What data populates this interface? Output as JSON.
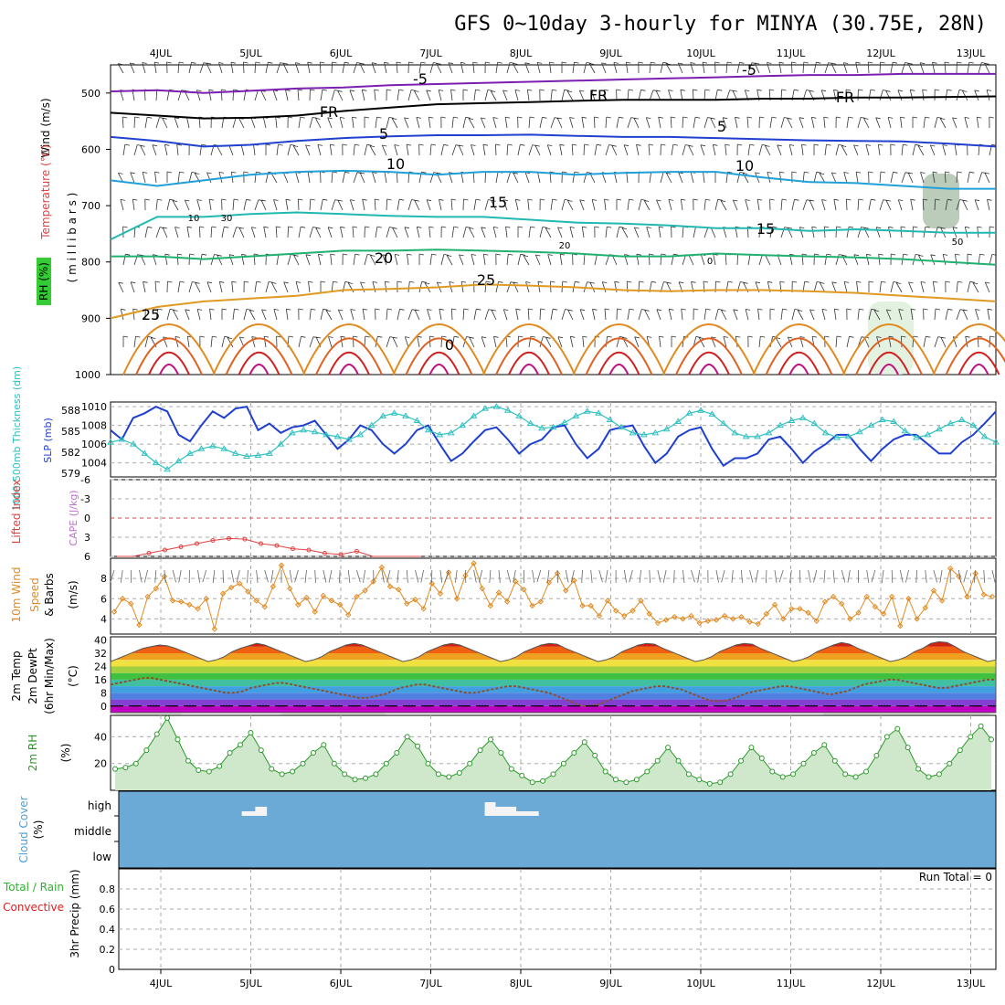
{
  "title": "GFS 0~10day 3-hourly for MINYA (30.75E, 28N)",
  "run_total": "Run Total = 0",
  "colors": {
    "wind_label": "#000000",
    "temp_label": "#e04040",
    "rh_badge": "#22bb22",
    "slp": "#1f3fd0",
    "thickness": "#30c0c0",
    "lifted": "#e04040",
    "cape": "#c070d0",
    "wind10": "#e08a20",
    "rh2m": "#2a9a2a",
    "cloud_bg": "#6baad6",
    "cloud_block": "#f4f4f4",
    "precip_total": "#30b030",
    "precip_conv": "#e02020"
  },
  "chart_data": [
    {
      "type": "line",
      "panel": "upper-air",
      "labels": {
        "wind": "Wind (m/s)",
        "temperature": "Temperature (°C)",
        "rh": "RH (%)",
        "pressure": "( m i l l i b a r s )"
      },
      "x": [
        "4JUL",
        "5JUL",
        "6JUL",
        "7JUL",
        "8JUL",
        "9JUL",
        "10JUL",
        "11JUL",
        "12JUL",
        "13JUL"
      ],
      "yticks": [
        500,
        600,
        700,
        800,
        900,
        1000
      ],
      "ylim": [
        1000,
        450
      ],
      "isotherm_labels": [
        "-5",
        "-5",
        "FR",
        "FR",
        "FR",
        "5",
        "5",
        "10",
        "10",
        "15",
        "15",
        "20",
        "25",
        "25",
        "0",
        "50",
        "10",
        "30",
        "20",
        "0"
      ],
      "series": [
        {
          "value": -5,
          "color": "#7a1fb0",
          "p": [
            497,
            495,
            500,
            496,
            492,
            490,
            486,
            484,
            482,
            480,
            478,
            476,
            474,
            472,
            470,
            468,
            468,
            466,
            466,
            466
          ]
        },
        {
          "value": 0,
          "color": "#000000",
          "p": [
            535,
            540,
            545,
            544,
            540,
            532,
            526,
            520,
            518,
            516,
            514,
            512,
            512,
            512,
            510,
            510,
            508,
            508,
            507,
            506
          ]
        },
        {
          "value": 5,
          "color": "#2040d0",
          "p": [
            578,
            585,
            595,
            592,
            585,
            580,
            577,
            575,
            575,
            574,
            576,
            578,
            578,
            580,
            582,
            584,
            585,
            586,
            590,
            595
          ]
        },
        {
          "value": 10,
          "color": "#20a0d8",
          "p": [
            655,
            665,
            655,
            645,
            640,
            638,
            640,
            645,
            640,
            640,
            645,
            642,
            640,
            640,
            650,
            658,
            660,
            665,
            670,
            670
          ]
        },
        {
          "value": 15,
          "color": "#20b8b0",
          "p": [
            760,
            720,
            720,
            715,
            712,
            715,
            718,
            720,
            720,
            725,
            730,
            732,
            735,
            740,
            740,
            745,
            742,
            745,
            748,
            748
          ]
        },
        {
          "value": 20,
          "color": "#20b070",
          "p": [
            790,
            790,
            795,
            790,
            785,
            780,
            780,
            778,
            780,
            782,
            785,
            790,
            790,
            785,
            788,
            790,
            792,
            795,
            800,
            805
          ]
        },
        {
          "value": 25,
          "color": "#e09a20",
          "p": [
            900,
            880,
            870,
            865,
            860,
            850,
            848,
            845,
            840,
            842,
            845,
            850,
            852,
            850,
            850,
            852,
            855,
            860,
            865,
            870
          ]
        }
      ]
    },
    {
      "type": "line",
      "panel": "slp-thickness",
      "labels": {
        "thickness": "1000-500mb Thickness (dm)",
        "slp": "SLP (mb)"
      },
      "thickness_ticks": [
        "588",
        "585",
        "582",
        "579"
      ],
      "slp_ticks": [
        "1010",
        "1008",
        "1006",
        "1004"
      ],
      "slp_lim": [
        1002.5,
        1010.5
      ],
      "series": [
        {
          "name": "SLP",
          "color": "#1f3fd0",
          "values": [
            1007.5,
            1006.5,
            1008.8,
            1009.3,
            1010.0,
            1009.5,
            1007.0,
            1006.3,
            1008.0,
            1009.5,
            1008.8,
            1009.8,
            1010.0,
            1007.5,
            1008.2,
            1007.2,
            1007.8,
            1008.0,
            1008.5,
            1007.0,
            1005.5,
            1006.5,
            1008.0,
            1007.5,
            1006.0,
            1005.0,
            1006.0,
            1007.5,
            1008.0,
            1006.0,
            1004.2,
            1005.0,
            1006.3,
            1007.5,
            1007.8,
            1006.5,
            1005.0,
            1006.0,
            1006.5,
            1007.8,
            1008.0,
            1006.0,
            1004.5,
            1005.5,
            1007.5,
            1007.8,
            1008.0,
            1005.8,
            1004.0,
            1005.0,
            1006.8,
            1007.5,
            1007.8,
            1005.5,
            1003.7,
            1004.5,
            1004.5,
            1005.0,
            1006.5,
            1006.8,
            1005.5,
            1004.0,
            1005.2,
            1006.0,
            1007.0,
            1007.0,
            1005.5,
            1004.2,
            1005.5,
            1006.5,
            1007.0,
            1007.0,
            1006.0,
            1005.0,
            1005.0,
            1006.2,
            1007.0,
            1008.2,
            1009.5
          ]
        },
        {
          "name": "Thickness",
          "color": "#30c0c0",
          "values": [
            1006.2,
            1006.5,
            1006.0,
            1005.0,
            1004.0,
            1003.3,
            1004.2,
            1005.0,
            1005.5,
            1005.8,
            1005.5,
            1005.0,
            1004.7,
            1004.8,
            1005.0,
            1006.0,
            1007.2,
            1007.5,
            1007.3,
            1007.0,
            1006.8,
            1006.5,
            1007.0,
            1008.0,
            1009.0,
            1009.3,
            1009.0,
            1008.5,
            1007.5,
            1007.0,
            1007.2,
            1008.0,
            1009.0,
            1009.8,
            1010.0,
            1009.6,
            1009.0,
            1008.2,
            1007.7,
            1007.8,
            1008.3,
            1009.0,
            1009.5,
            1009.3,
            1008.6,
            1007.8,
            1007.2,
            1007.0,
            1007.2,
            1007.6,
            1008.4,
            1009.3,
            1009.6,
            1009.2,
            1008.2,
            1007.2,
            1006.8,
            1006.8,
            1007.2,
            1008.0,
            1008.5,
            1008.8,
            1008.2,
            1007.2,
            1006.7,
            1006.8,
            1007.3,
            1008.0,
            1008.6,
            1008.4,
            1007.4,
            1006.7,
            1007.0,
            1007.6,
            1008.2,
            1008.6,
            1008.0,
            1006.8,
            1006.2
          ]
        }
      ]
    },
    {
      "type": "line",
      "panel": "lifted-cape",
      "labels": {
        "lifted": "Lifted Index",
        "cape": "CAPE (J/kg)"
      },
      "yticks": [
        "-6",
        "-3",
        "0",
        "3",
        "6"
      ],
      "ylim": [
        6,
        -6
      ],
      "series": [
        {
          "name": "Lifted Index",
          "color": "#e04040",
          "values": [
            6,
            6,
            5.5,
            5,
            4.5,
            4,
            3.5,
            3.2,
            3.3,
            4,
            4.3,
            4.8,
            5,
            5.5,
            5.7,
            5.2,
            6,
            6,
            6,
            6
          ]
        }
      ]
    },
    {
      "type": "line",
      "panel": "wind10m",
      "labels": {
        "left": "10m Wind",
        "speed": "Speed",
        "barbs": "& Barbs",
        "unit": "(m/s)"
      },
      "yticks": [
        "8",
        "6",
        "4"
      ],
      "ylim": [
        2.5,
        10
      ],
      "series": [
        {
          "name": "10m Wind Speed",
          "color": "#e08a20",
          "values": [
            4.7,
            6.0,
            5.5,
            3.4,
            6.2,
            7.0,
            8.2,
            5.8,
            5.7,
            5.4,
            5.0,
            6.0,
            3.0,
            6.5,
            7.1,
            7.5,
            6.7,
            5.8,
            5.2,
            7.2,
            9.3,
            7.0,
            5.4,
            6.1,
            4.7,
            6.3,
            5.8,
            5.4,
            4.4,
            6.2,
            6.8,
            7.7,
            9.1,
            7.2,
            6.9,
            5.5,
            5.9,
            5.0,
            7.5,
            6.5,
            8.6,
            6.0,
            8.3,
            9.5,
            7.0,
            5.3,
            6.6,
            5.7,
            7.7,
            6.9,
            5.3,
            5.7,
            7.6,
            8.5,
            6.8,
            7.8,
            5.3,
            5.3,
            4.3,
            5.8,
            4.8,
            4.3,
            4.8,
            5.8,
            4.5,
            3.6,
            3.9,
            4.2,
            4.0,
            4.3,
            3.6,
            3.8,
            3.9,
            4.3,
            4.0,
            4.2,
            3.7,
            3.5,
            4.5,
            5.4,
            4.0,
            5.0,
            5.0,
            4.6,
            3.8,
            5.7,
            6.2,
            5.5,
            4.0,
            4.6,
            6.2,
            5.2,
            4.5,
            6.2,
            3.3,
            6.0,
            4.0,
            5.1,
            6.8,
            5.8,
            9.0,
            8.2,
            6.2,
            8.5,
            6.4,
            6.2
          ]
        }
      ]
    },
    {
      "type": "area",
      "panel": "temp2m",
      "labels": {
        "temp": "2m Temp",
        "dew": "2m DewPt",
        "minmax": "(6hr Min/Max)",
        "unit": "(°C)"
      },
      "yticks": [
        "40",
        "32",
        "24",
        "16",
        "8",
        "0"
      ],
      "ylim": [
        -4,
        42
      ],
      "color_bands": [
        "#c000c0",
        "#8040d0",
        "#5080e0",
        "#40a0e0",
        "#40c0a0",
        "#40c040",
        "#a0d040",
        "#f0e040",
        "#f0a020",
        "#f06010",
        "#d02010",
        "#a00000"
      ],
      "series": [
        {
          "name": "2m Temp",
          "values": [
            27,
            29,
            31,
            33,
            35,
            36,
            37,
            36.5,
            35,
            33,
            31,
            29,
            27,
            28,
            30,
            33,
            35,
            36.5,
            38,
            37,
            35,
            33,
            31,
            29,
            27,
            28,
            30,
            33,
            35,
            37,
            38,
            37,
            35,
            33,
            31,
            29,
            27,
            28,
            30,
            33,
            35,
            37,
            38,
            37,
            35,
            33,
            31,
            29,
            27,
            28,
            30,
            33,
            35,
            37,
            38,
            37.5,
            35,
            33,
            31,
            29,
            27,
            28,
            30,
            33,
            35,
            37,
            38,
            37.5,
            35,
            33,
            31,
            29,
            27,
            28,
            30,
            33,
            35,
            37,
            38,
            37.5,
            35,
            33,
            31,
            29,
            27,
            28,
            30,
            33,
            35,
            37,
            38.5,
            37.5,
            35,
            33,
            31,
            29,
            27,
            28,
            30,
            33,
            35,
            38,
            39,
            38.5,
            36,
            33,
            31,
            29,
            27,
            28
          ]
        },
        {
          "name": "2m DewPt",
          "values": [
            13,
            14,
            15,
            16,
            17,
            17,
            16,
            15,
            14,
            13,
            12,
            11,
            10,
            9,
            8,
            8,
            9,
            11,
            12,
            13,
            14,
            14,
            13,
            12,
            11,
            10,
            9,
            8,
            7,
            6,
            5,
            5,
            6,
            7,
            9,
            11,
            12,
            13,
            13,
            12,
            11,
            10,
            9,
            8,
            8,
            9,
            10,
            11,
            12,
            12,
            11,
            10,
            9,
            8,
            6,
            4,
            2,
            0,
            0,
            1,
            3,
            5,
            7,
            9,
            10,
            11,
            12,
            12,
            11,
            10,
            8,
            6,
            4,
            3,
            3,
            4,
            6,
            8,
            9,
            10,
            11,
            12,
            12,
            11,
            10,
            9,
            8,
            7,
            8,
            9,
            11,
            13,
            14,
            15,
            16,
            16,
            15,
            14,
            13,
            12,
            11,
            11,
            12,
            13,
            14,
            15,
            16,
            16
          ]
        }
      ]
    },
    {
      "type": "area",
      "panel": "rh2m",
      "labels": {
        "rh": "2m RH",
        "unit": "(%)"
      },
      "yticks": [
        "40",
        "20"
      ],
      "ylim": [
        0,
        56
      ],
      "series": [
        {
          "name": "2m RH",
          "values": [
            16,
            17,
            20,
            30,
            42,
            54,
            38,
            22,
            15,
            14,
            18,
            28,
            34,
            43,
            30,
            16,
            12,
            14,
            20,
            28,
            34,
            20,
            12,
            8,
            9,
            12,
            20,
            28,
            40,
            33,
            20,
            12,
            10,
            13,
            20,
            30,
            38,
            28,
            16,
            11,
            6,
            7,
            12,
            20,
            28,
            36,
            26,
            14,
            8,
            6,
            8,
            14,
            22,
            32,
            22,
            12,
            8,
            5,
            6,
            12,
            22,
            32,
            24,
            14,
            10,
            12,
            20,
            28,
            34,
            22,
            12,
            10,
            14,
            26,
            40,
            46,
            32,
            16,
            10,
            12,
            20,
            30,
            40,
            48,
            38
          ]
        }
      ]
    },
    {
      "type": "area",
      "panel": "cloud",
      "labels": {
        "cloud": "Cloud Cover",
        "unit": "(%)",
        "high": "high",
        "middle": "middle",
        "low": "low"
      },
      "blocks": [
        {
          "start": 0.9,
          "end": 1.15,
          "level": 1
        },
        {
          "start": 1.05,
          "end": 1.18,
          "level": 2
        },
        {
          "start": 3.6,
          "end": 4.2,
          "level": 1
        },
        {
          "start": 3.6,
          "end": 3.72,
          "level": 3
        },
        {
          "start": 3.72,
          "end": 3.95,
          "level": 2
        }
      ]
    },
    {
      "type": "bar",
      "panel": "precip",
      "labels": {
        "total": "Total / Rain",
        "conv": "Convective",
        "precip": "3hr Precip (mm)"
      },
      "yticks": [
        "0.8",
        "0.6",
        "0.4",
        "0.2",
        "0"
      ],
      "ylim": [
        0,
        1.0
      ],
      "values": []
    }
  ]
}
